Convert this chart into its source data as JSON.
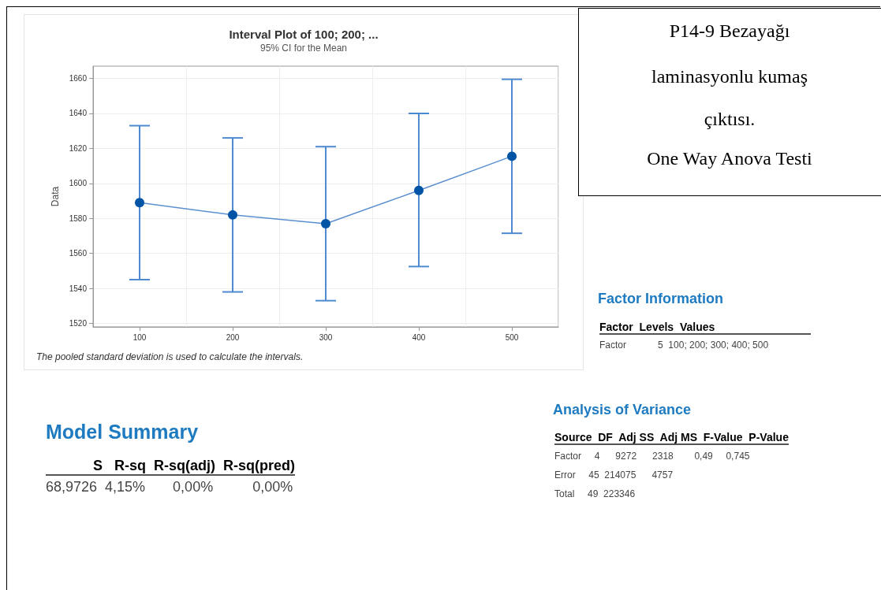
{
  "chart_data": {
    "type": "line",
    "title": "Interval Plot of 100; 200; ...",
    "subtitle": "95% CI for the Mean",
    "ylabel": "Data",
    "categories": [
      "100",
      "200",
      "300",
      "400",
      "500"
    ],
    "series": [
      {
        "color": "#0054a6",
        "values": [
          1589,
          1582,
          1577,
          1596,
          1615.5
        ],
        "errors": [
          [
            1545,
            1633
          ],
          [
            1538,
            1626
          ],
          [
            1533,
            1621
          ],
          [
            1552.5,
            1640
          ],
          [
            1571.5,
            1659.5
          ]
        ]
      }
    ],
    "ylim": [
      1518,
      1667
    ],
    "yticks": [
      1520,
      1540,
      1560,
      1580,
      1600,
      1620,
      1640,
      1660
    ],
    "grid": true,
    "marker": "circle",
    "line_style": "solid",
    "annotations": [
      "The pooled standard deviation is used to calculate the intervals.",
      "P14-9 Bezayağı",
      "laminasyonlu kumaş",
      "çıktısı.",
      "One Way Anova Testi",
      "Factor Information",
      "Factor  Levels  Values",
      "Factor            5  100; 200; 300; 400; 500",
      "Analysis of Variance",
      "Source  DF  Adj SS  Adj MS  F-Value  P-Value",
      "Factor     4      9272      2318        0,49     0,745",
      "Error     45  214075      4757",
      "Total     49  223346",
      "Model Summary",
      "            S   R-sq  R-sq(adj)  R-sq(pred)",
      "68,9726  4,15%       0,00%          0,00%"
    ]
  }
}
